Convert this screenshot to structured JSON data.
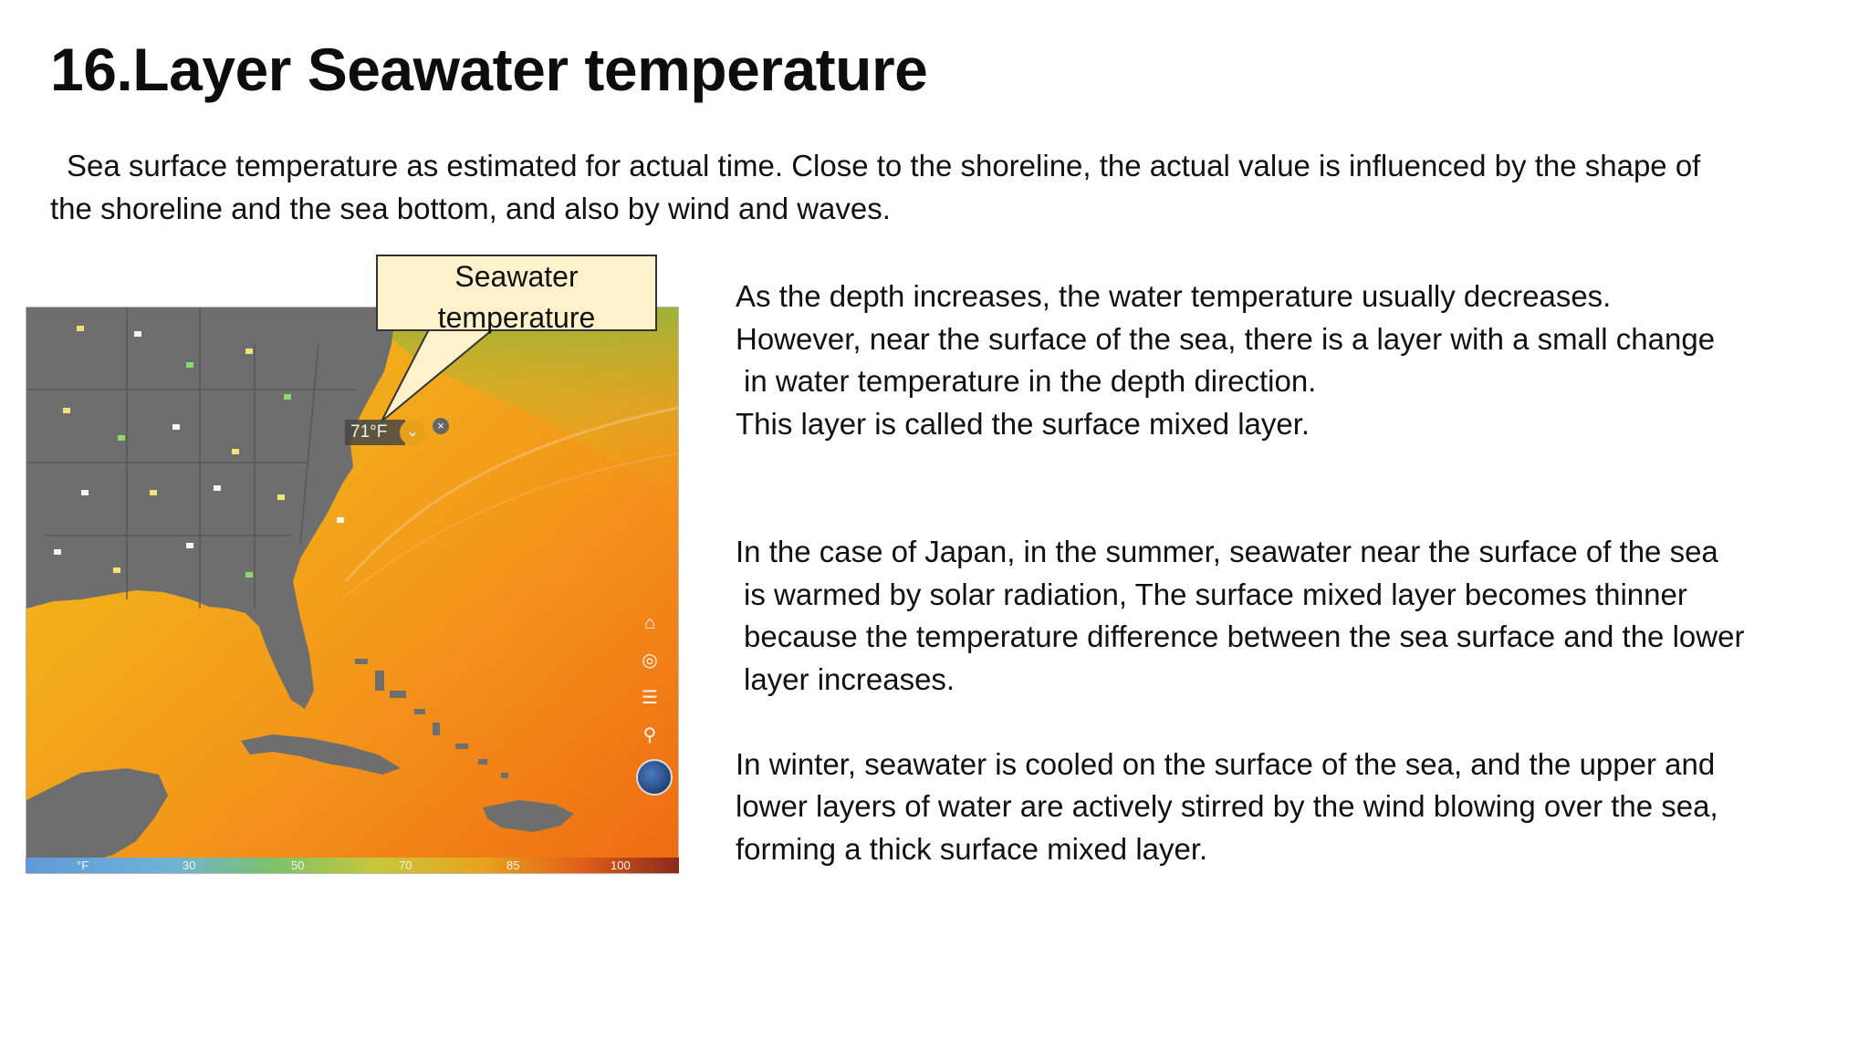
{
  "title": "16.Layer Seawater temperature",
  "intro": [
    "Sea surface temperature as estimated for actual time. Close to the shoreline, the actual value is influenced by the shape of",
    "the shoreline and the sea bottom, and also by wind and waves."
  ],
  "callout": [
    "Seawater",
    "temperature"
  ],
  "map": {
    "readout": "71°F",
    "scale": [
      "°F",
      "30",
      "50",
      "70",
      "85",
      "100"
    ]
  },
  "paragraphs": [
    [
      "As the depth increases, the water temperature usually decreases.",
      "However, near the surface of the sea, there is a layer with a small change",
      "in water temperature in the depth direction.",
      "This layer is called the surface mixed layer."
    ],
    [
      "In the case of Japan, in the summer, seawater near the surface of the sea",
      "is warmed by solar radiation, The surface mixed layer becomes thinner",
      "because the temperature difference between the sea surface and the lower",
      "layer increases."
    ],
    [
      "In winter, seawater is cooled on the surface of the sea, and the upper and",
      "lower layers of water are actively stirred by the wind blowing over the sea,",
      "forming a thick surface mixed layer."
    ]
  ],
  "colors": {
    "land": "#6e6e6e",
    "sea": "#f29a12",
    "callout_fill": "#fdf2cc"
  }
}
